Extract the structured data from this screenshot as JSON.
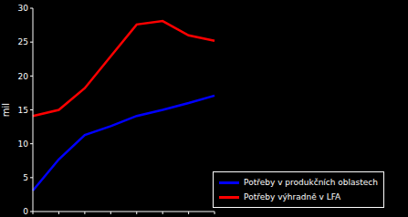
{
  "chart_data": {
    "type": "line",
    "categories": [
      null,
      null,
      null,
      null,
      null,
      null,
      null,
      null
    ],
    "series": [
      {
        "name": "Potřeby v produkčních oblastech",
        "color": "#0000ff",
        "values": [
          3.1,
          7.7,
          11.3,
          12.6,
          14.1,
          15.0,
          16.0,
          17.1
        ]
      },
      {
        "name": "Potřeby výhradně v LFA",
        "color": "#ff0000",
        "values": [
          14.1,
          15.0,
          18.2,
          22.9,
          27.6,
          28.1,
          26.0,
          25.2
        ]
      }
    ],
    "y_label": "mil",
    "ylim": [
      0,
      30
    ],
    "yticks": [
      0,
      5,
      10,
      15,
      20,
      25,
      30
    ],
    "grid": false,
    "legend": "lower right",
    "tick_labels": "y"
  }
}
